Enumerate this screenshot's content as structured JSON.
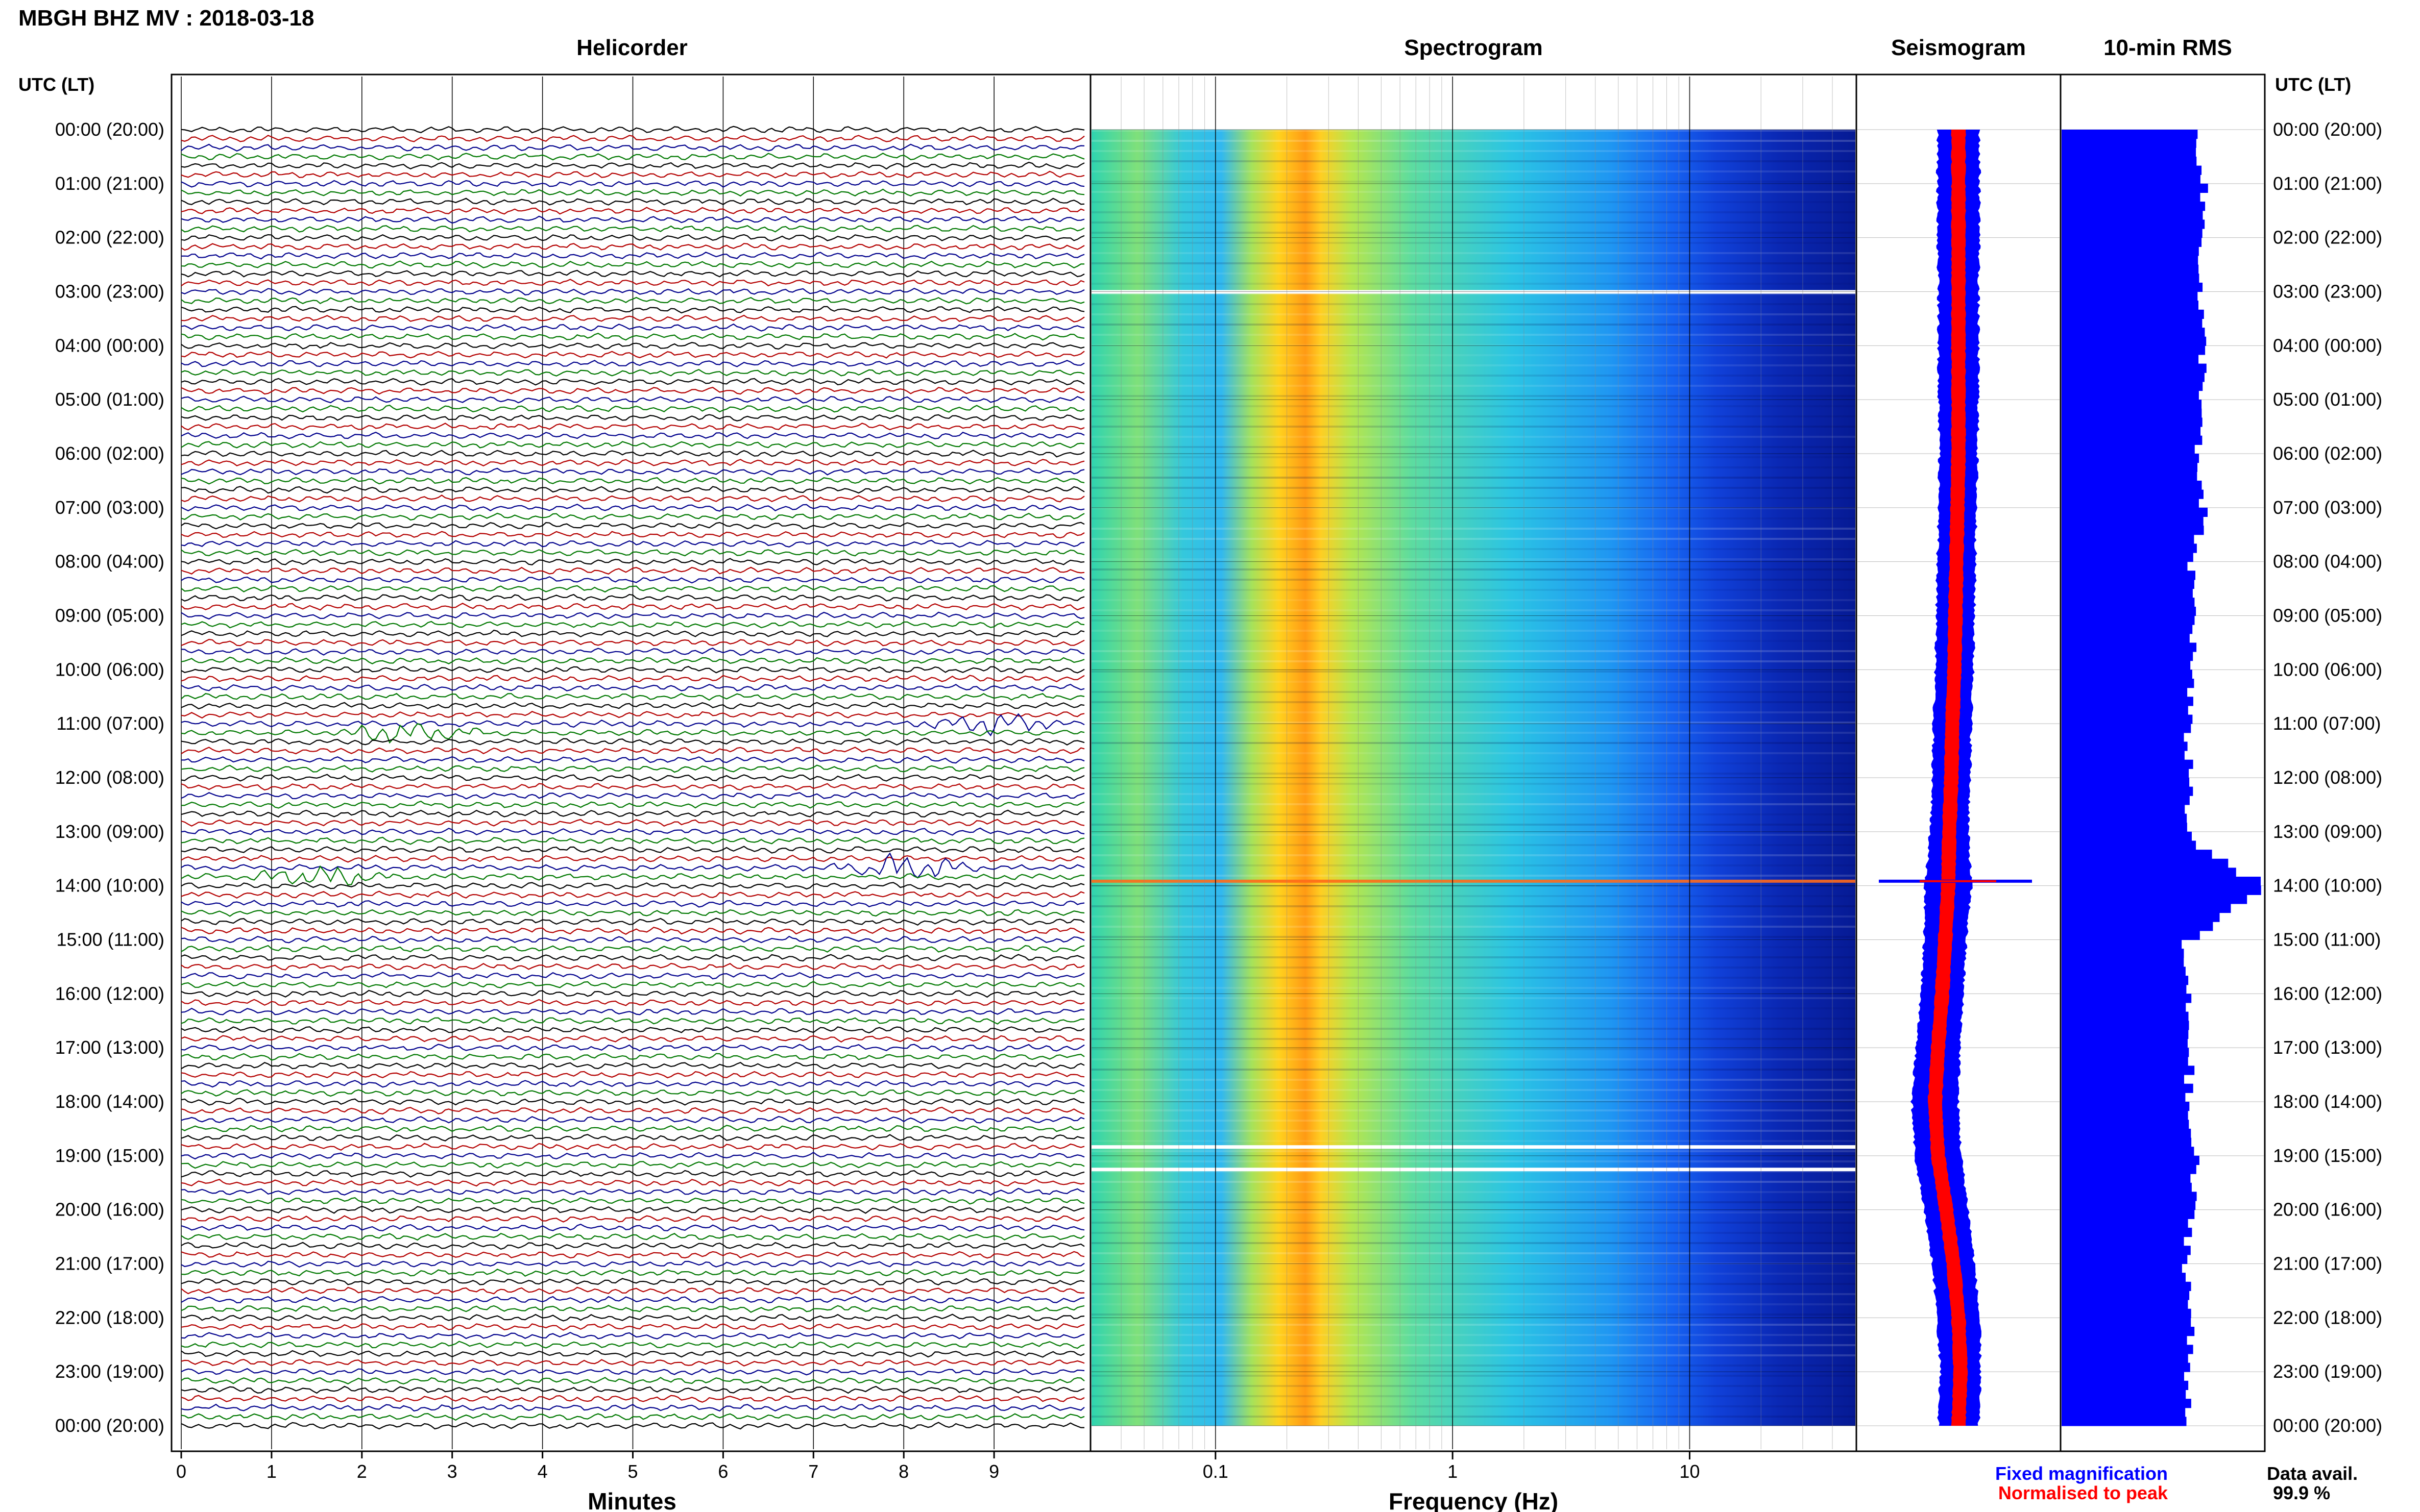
{
  "header": {
    "title": "MBGH BHZ MV : 2018-03-18",
    "utc_label_left": "UTC (LT)",
    "utc_label_right": "UTC (LT)"
  },
  "panels": {
    "helicorder": "Helicorder",
    "spectrogram": "Spectrogram",
    "seismogram": "Seismogram",
    "rms": "10-min RMS"
  },
  "time_labels": [
    "00:00 (20:00)",
    "01:00 (21:00)",
    "02:00 (22:00)",
    "03:00 (23:00)",
    "04:00 (00:00)",
    "05:00 (01:00)",
    "06:00 (02:00)",
    "07:00 (03:00)",
    "08:00 (04:00)",
    "09:00 (05:00)",
    "10:00 (06:00)",
    "11:00 (07:00)",
    "12:00 (08:00)",
    "13:00 (09:00)",
    "14:00 (10:00)",
    "15:00 (11:00)",
    "16:00 (12:00)",
    "17:00 (13:00)",
    "18:00 (14:00)",
    "19:00 (15:00)",
    "20:00 (16:00)",
    "21:00 (17:00)",
    "22:00 (18:00)",
    "23:00 (19:00)",
    "00:00 (20:00)"
  ],
  "chart_data": [
    {
      "type": "line",
      "title": "Helicorder",
      "xlabel": "Minutes",
      "xlim": [
        0,
        10
      ],
      "x_ticks": [
        "0",
        "1",
        "2",
        "3",
        "4",
        "5",
        "6",
        "7",
        "8",
        "9"
      ],
      "trace_colors": [
        "#000000",
        "#b40000",
        "#00008c",
        "#007800"
      ],
      "notable_events": [
        {
          "time_utc": "11:10",
          "minutes": 2.5,
          "description": "black burst"
        },
        {
          "time_utc": "11:00",
          "minutes": 8.9,
          "description": "blue burst"
        },
        {
          "time_utc": "13:50",
          "minutes": 1.5,
          "description": "green large burst"
        },
        {
          "time_utc": "13:40",
          "minutes": 8.0,
          "description": "blue spikes"
        }
      ]
    },
    {
      "type": "heatmap",
      "title": "Spectrogram",
      "xlabel": "Frequency (Hz)",
      "x_scale": "log",
      "xlim": [
        0.03,
        50
      ],
      "x_ticks": [
        "0.1",
        "1",
        "10"
      ],
      "peak_band_hz": 0.22,
      "gaps_utc": [
        "03:00",
        "18:50",
        "19:15"
      ],
      "event_line_utc": "13:55"
    },
    {
      "type": "area",
      "title": "Seismogram",
      "legend": [
        "Fixed magnification",
        "Normalised to peak"
      ],
      "legend_colors": [
        "#0000ff",
        "#ff0000"
      ],
      "hours": [
        0,
        1,
        2,
        3,
        4,
        5,
        6,
        7,
        8,
        9,
        10,
        11,
        12,
        13,
        14,
        15,
        16,
        17,
        18,
        19,
        20,
        21,
        22,
        23,
        24
      ],
      "center_offset": [
        0.0,
        0.0,
        0.0,
        0.0,
        0.0,
        0.0,
        0.0,
        -0.01,
        -0.02,
        -0.03,
        -0.04,
        -0.06,
        -0.07,
        -0.09,
        -0.1,
        -0.13,
        -0.16,
        -0.2,
        -0.23,
        -0.2,
        -0.12,
        -0.05,
        0.0,
        0.02,
        0.0
      ],
      "blue_halfwidth": [
        0.18,
        0.18,
        0.18,
        0.17,
        0.17,
        0.17,
        0.16,
        0.16,
        0.16,
        0.16,
        0.16,
        0.16,
        0.16,
        0.16,
        0.2,
        0.18,
        0.18,
        0.19,
        0.2,
        0.2,
        0.19,
        0.18,
        0.18,
        0.17,
        0.17
      ],
      "red_halfwidth": [
        0.06,
        0.06,
        0.06,
        0.06,
        0.06,
        0.06,
        0.06,
        0.06,
        0.06,
        0.06,
        0.06,
        0.06,
        0.06,
        0.06,
        0.06,
        0.06,
        0.06,
        0.06,
        0.06,
        0.06,
        0.06,
        0.06,
        0.06,
        0.06,
        0.06
      ]
    },
    {
      "type": "bar",
      "title": "10-min RMS",
      "orientation": "horizontal",
      "bar_color": "#0000ff",
      "hourly_relative_rms": [
        0.68,
        0.7,
        0.7,
        0.68,
        0.7,
        0.7,
        0.66,
        0.7,
        0.64,
        0.66,
        0.64,
        0.62,
        0.64,
        0.62,
        0.98,
        0.6,
        0.62,
        0.64,
        0.62,
        0.66,
        0.64,
        0.62,
        0.64,
        0.62,
        0.64
      ]
    }
  ],
  "footer": {
    "legend_fixed": "Fixed magnification",
    "legend_normalised": "Normalised to peak",
    "data_avail_label": "Data avail.",
    "data_avail_value": "99.9 %"
  }
}
